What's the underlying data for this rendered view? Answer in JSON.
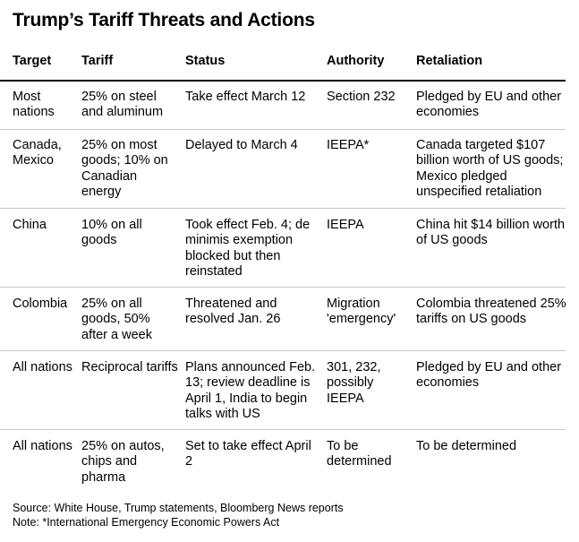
{
  "title": "Trump’s Tariff Threats and Actions",
  "headers": {
    "target": "Target",
    "tariff": "Tariff",
    "status": "Status",
    "authority": "Authority",
    "retaliation": "Retaliation"
  },
  "rows": [
    {
      "target": "Most nations",
      "tariff": "25% on steel and aluminum",
      "status": "Take effect March 12",
      "authority": "Section 232",
      "retaliation": "Pledged by EU and other economies"
    },
    {
      "target": "Canada, Mexico",
      "tariff": "25% on most goods; 10% on Canadian energy",
      "status": "Delayed to March 4",
      "authority": "IEEPA*",
      "retaliation": "Canada targeted $107 billion worth of US goods; Mexico pledged unspecified retaliation"
    },
    {
      "target": "China",
      "tariff": "10% on all goods",
      "status": "Took effect Feb. 4; de minimis exemption blocked but then reinstated",
      "authority": "IEEPA",
      "retaliation": "China hit $14 billion worth of US goods"
    },
    {
      "target": "Colombia",
      "tariff": "25% on all goods, 50% after a week",
      "status": "Threatened and resolved Jan. 26",
      "authority": "Migration 'emergency'",
      "retaliation": "Colombia threatened 25% tariffs on US goods"
    },
    {
      "target": "All nations",
      "tariff": "Reciprocal tariffs",
      "status": "Plans announced Feb. 13; review deadline is April 1, India to begin talks with US",
      "authority": "301, 232, possibly IEEPA",
      "retaliation": "Pledged by EU and other economies"
    },
    {
      "target": "All nations",
      "tariff": "25% on autos, chips and pharma",
      "status": "Set to take effect April 2",
      "authority": "To be determined",
      "retaliation": "To be determined"
    }
  ],
  "footer": {
    "source": "Source: White House, Trump statements, Bloomberg News reports",
    "note": "Note: *International Emergency Economic Powers Act"
  }
}
